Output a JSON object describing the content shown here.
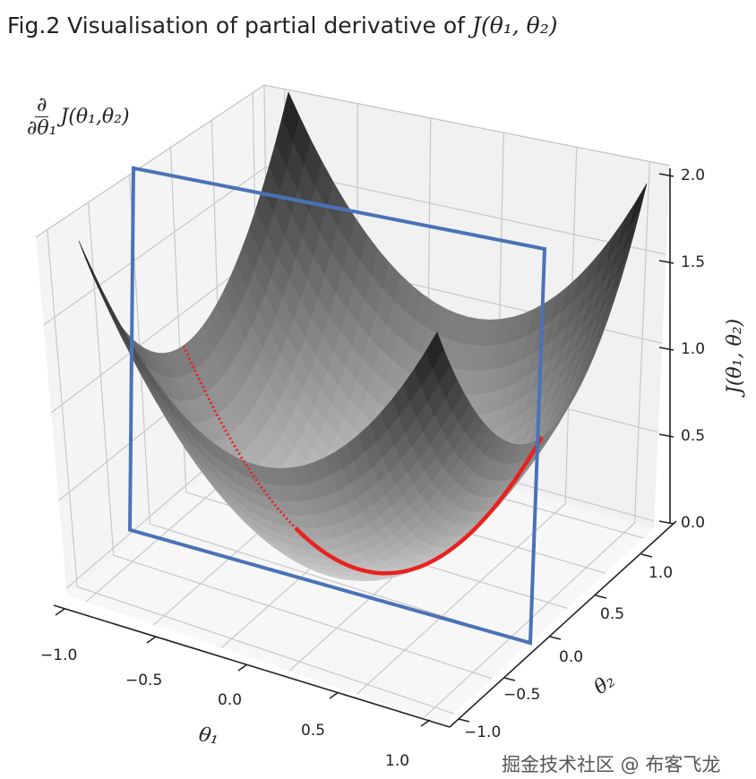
{
  "chart_data": {
    "type": "surface",
    "title_prefix": "Fig.2 Visualisation of partial derivative of ",
    "title_math": "J(θ₁, θ₂)",
    "xlabel": "θ₁",
    "ylabel": "θ₂",
    "zlabel": "J(θ₁, θ₂)",
    "annotation": {
      "numerator": "∂",
      "denominator": "∂θ₁",
      "expr": "J(θ₁,θ₂)"
    },
    "x_ticks": [
      "−1.0",
      "−0.5",
      "0.0",
      "0.5",
      "1.0"
    ],
    "y_ticks": [
      "−1.0",
      "−0.5",
      "0.0",
      "0.5",
      "1.0"
    ],
    "z_ticks": [
      "0.0",
      "0.5",
      "1.0",
      "1.5",
      "2.0"
    ],
    "xlim": [
      -1,
      1
    ],
    "ylim": [
      -1,
      1
    ],
    "zlim": [
      0,
      2
    ],
    "surface": {
      "formula": "J = θ1^2 + θ2^2",
      "resolution": 32,
      "colormap": "gray_r"
    },
    "slice_plane": {
      "theta2": 0,
      "theta1_range": [
        -1.2,
        1.0
      ],
      "z_range": [
        0,
        2.05
      ],
      "color": "#4a72b8"
    },
    "slice_curve": {
      "theta2": 0,
      "theta1_range": [
        -1,
        1
      ],
      "color": "#e8221f"
    },
    "grid": true
  },
  "watermark": "掘金技术社区 @ 布客飞龙"
}
